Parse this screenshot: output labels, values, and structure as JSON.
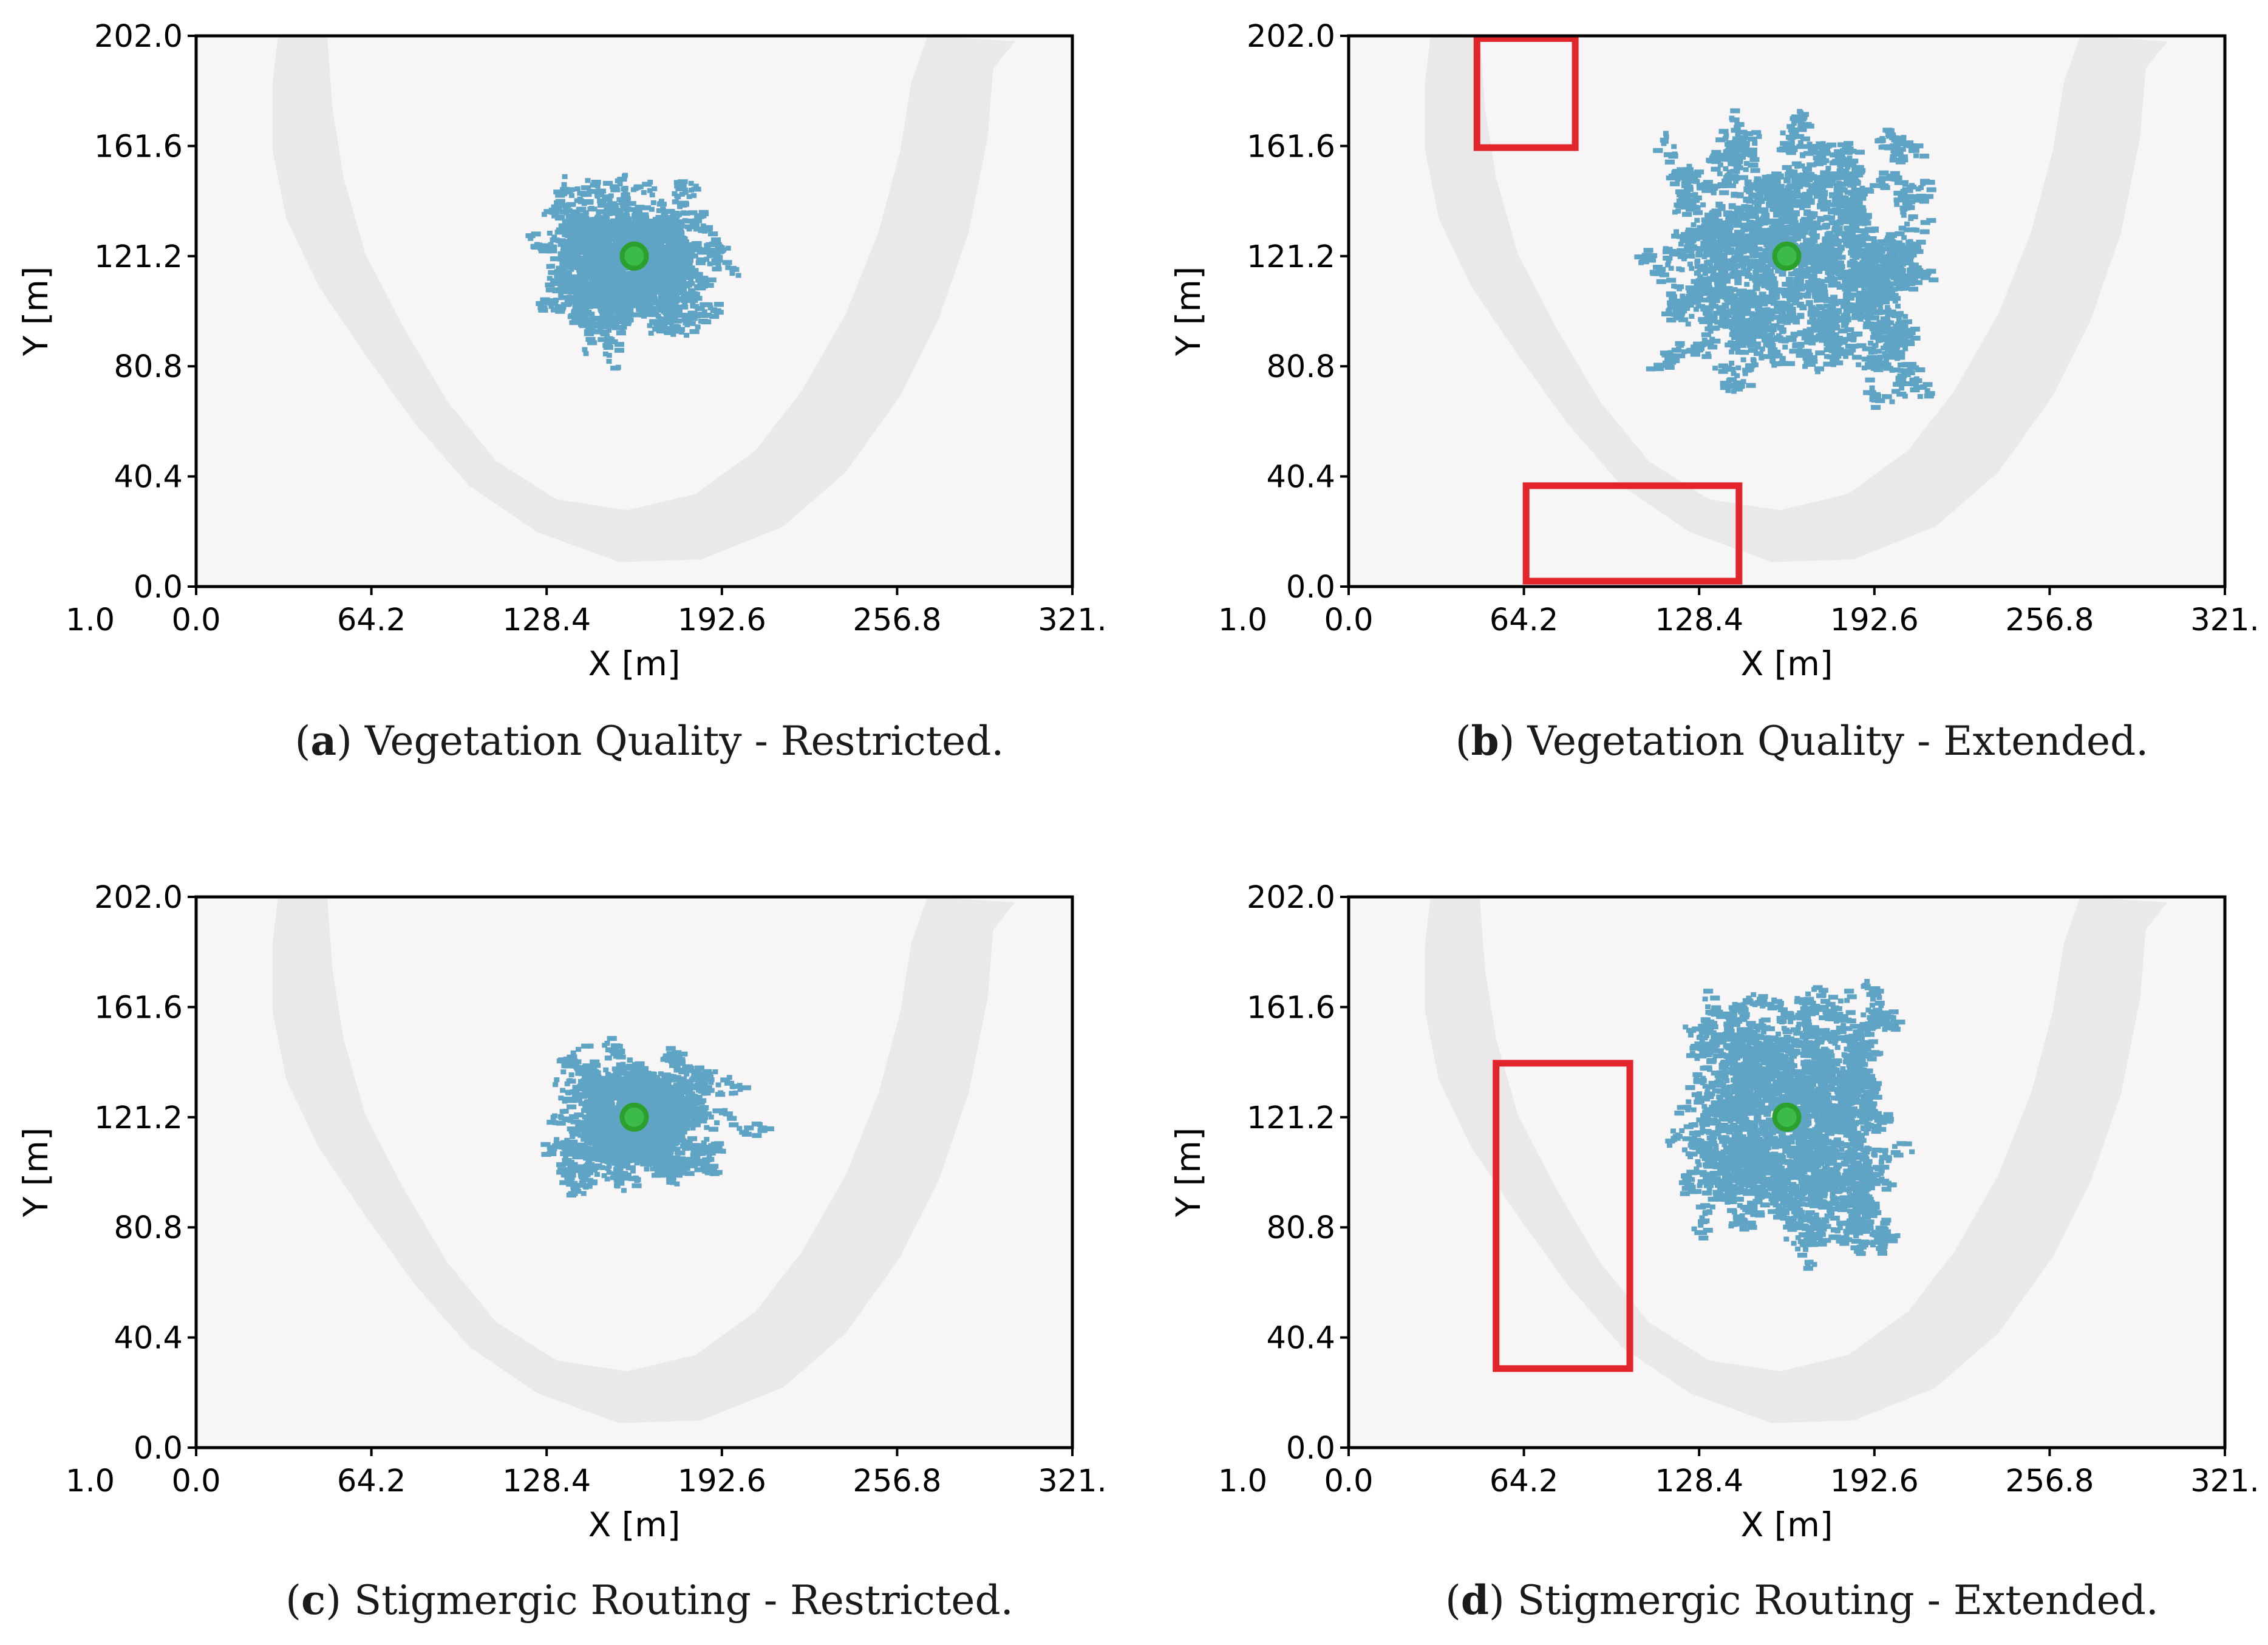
{
  "chart_data": [
    {
      "type": "scatter",
      "panel_letter": "a",
      "caption": "Vegetation Quality - Restricted.",
      "xlabel": "X [m]",
      "ylabel": "Y [m]",
      "xlim": [
        0.0,
        321.0
      ],
      "ylim": [
        0.0,
        202.0
      ],
      "xticks": [
        "1.0",
        "0.0",
        "64.2",
        "128.4",
        "192.6",
        "256.8",
        "321."
      ],
      "yticks": [
        "0.0",
        "40.4",
        "80.8",
        "121.2",
        "161.6",
        "202.0"
      ],
      "grid": false,
      "center": {
        "x": 160.5,
        "y": 121.2,
        "color": "#2ca02c"
      },
      "spread": {
        "sx": 24,
        "sy": 20,
        "count": 1800,
        "extent_x": [
          100,
          225
        ],
        "extent_y": [
          58,
          175
        ]
      },
      "point_color": "#5fa4c4",
      "highlight_regions": []
    },
    {
      "type": "scatter",
      "panel_letter": "b",
      "caption": "Vegetation Quality - Extended.",
      "xlabel": "X [m]",
      "ylabel": "Y [m]",
      "xlim": [
        0.0,
        321.0
      ],
      "ylim": [
        0.0,
        202.0
      ],
      "xticks": [
        "1.0",
        "0.0",
        "64.2",
        "128.4",
        "192.6",
        "256.8",
        "321."
      ],
      "yticks": [
        "0.0",
        "40.4",
        "80.8",
        "121.2",
        "161.6",
        "202.0"
      ],
      "grid": false,
      "center": {
        "x": 160.5,
        "y": 121.2,
        "color": "#2ca02c"
      },
      "spread": {
        "sx": 42,
        "sy": 40,
        "count": 2600,
        "extent_x": [
          55,
          225
        ],
        "extent_y": [
          0,
          202
        ]
      },
      "point_color": "#5fa4c4",
      "highlight_regions": [
        {
          "x": [
            47,
            83
          ],
          "y": [
            161,
            201
          ]
        },
        {
          "x": [
            65,
            143
          ],
          "y": [
            2,
            37
          ]
        }
      ]
    },
    {
      "type": "scatter",
      "panel_letter": "c",
      "caption": "Stigmergic Routing - Restricted.",
      "xlabel": "X [m]",
      "ylabel": "Y [m]",
      "xlim": [
        0.0,
        321.0
      ],
      "ylim": [
        0.0,
        202.0
      ],
      "xticks": [
        "1.0",
        "0.0",
        "64.2",
        "128.4",
        "192.6",
        "256.8",
        "321."
      ],
      "yticks": [
        "0.0",
        "40.4",
        "80.8",
        "121.2",
        "161.6",
        "202.0"
      ],
      "grid": false,
      "center": {
        "x": 160.5,
        "y": 121.2,
        "color": "#2ca02c"
      },
      "spread": {
        "sx": 22,
        "sy": 19,
        "count": 1800,
        "extent_x": [
          106,
          228
        ],
        "extent_y": [
          63,
          173
        ]
      },
      "point_color": "#5fa4c4",
      "highlight_regions": []
    },
    {
      "type": "scatter",
      "panel_letter": "d",
      "caption": "Stigmergic Routing - Extended.",
      "xlabel": "X [m]",
      "ylabel": "Y [m]",
      "xlim": [
        0.0,
        321.0
      ],
      "ylim": [
        0.0,
        202.0
      ],
      "xticks": [
        "1.0",
        "0.0",
        "64.2",
        "128.4",
        "192.6",
        "256.8",
        "321."
      ],
      "yticks": [
        "0.0",
        "40.4",
        "80.8",
        "121.2",
        "161.6",
        "202.0"
      ],
      "grid": false,
      "center": {
        "x": 160.5,
        "y": 121.2,
        "color": "#2ca02c"
      },
      "spread": {
        "sx": 30,
        "sy": 38,
        "count": 2600,
        "extent_x": [
          58,
          225
        ],
        "extent_y": [
          0,
          193
        ]
      },
      "point_color": "#5fa4c4",
      "highlight_regions": [
        {
          "x": [
            54,
            103
          ],
          "y": [
            29,
            141
          ]
        }
      ]
    }
  ],
  "colors": {
    "plot_background": "#f8f5f6",
    "track_band": "#ebe8e9",
    "highlight_box": "#e2242b",
    "axes": "#000000"
  }
}
